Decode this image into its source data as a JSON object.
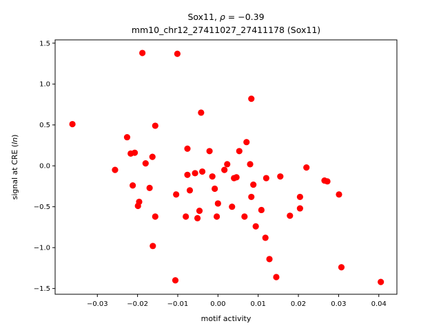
{
  "chart_data": {
    "type": "scatter",
    "title_line1": "Sox11, ρ = −0.39",
    "title_line2": "mm10_chr12_27411027_27411178 (Sox11)",
    "xlabel": "motif activity",
    "ylabel": "signal at CRE (ln)",
    "xlim": [
      -0.0405,
      0.0445
    ],
    "ylim": [
      -1.57,
      1.54
    ],
    "xticks": [
      -0.03,
      -0.02,
      -0.01,
      0.0,
      0.01,
      0.02,
      0.03,
      0.04
    ],
    "xtick_labels": [
      "−0.03",
      "−0.02",
      "−0.01",
      "0.00",
      "0.01",
      "0.02",
      "0.03",
      "0.04"
    ],
    "yticks": [
      -1.5,
      -1.0,
      -0.5,
      0.0,
      0.5,
      1.0,
      1.5
    ],
    "ytick_labels": [
      "−1.5",
      "−1.0",
      "−0.5",
      "0.0",
      "0.5",
      "1.0",
      "1.5"
    ],
    "grid": false,
    "marker_color": "#ff0000",
    "points": [
      {
        "x": -0.0362,
        "y": 0.51
      },
      {
        "x": -0.0256,
        "y": -0.05
      },
      {
        "x": -0.0226,
        "y": 0.35
      },
      {
        "x": -0.0217,
        "y": 0.15
      },
      {
        "x": -0.0212,
        "y": -0.24
      },
      {
        "x": -0.0207,
        "y": 0.16
      },
      {
        "x": -0.0199,
        "y": -0.49
      },
      {
        "x": -0.0196,
        "y": -0.44
      },
      {
        "x": -0.0188,
        "y": 1.38
      },
      {
        "x": -0.018,
        "y": 0.03
      },
      {
        "x": -0.017,
        "y": -0.27
      },
      {
        "x": -0.0163,
        "y": 0.11
      },
      {
        "x": -0.0162,
        "y": -0.98
      },
      {
        "x": -0.0156,
        "y": 0.49
      },
      {
        "x": -0.0156,
        "y": -0.62
      },
      {
        "x": -0.0106,
        "y": -1.4
      },
      {
        "x": -0.0104,
        "y": -0.35
      },
      {
        "x": -0.0101,
        "y": 1.37
      },
      {
        "x": -0.008,
        "y": -0.62
      },
      {
        "x": -0.0076,
        "y": 0.21
      },
      {
        "x": -0.0076,
        "y": -0.11
      },
      {
        "x": -0.007,
        "y": -0.3
      },
      {
        "x": -0.0057,
        "y": -0.09
      },
      {
        "x": -0.0051,
        "y": -0.64
      },
      {
        "x": -0.0046,
        "y": -0.55
      },
      {
        "x": -0.0042,
        "y": 0.65
      },
      {
        "x": -0.0039,
        "y": -0.07
      },
      {
        "x": -0.0021,
        "y": 0.18
      },
      {
        "x": -0.0014,
        "y": -0.13
      },
      {
        "x": -0.0008,
        "y": -0.28
      },
      {
        "x": -0.0003,
        "y": -0.62
      },
      {
        "x": 0.0,
        "y": -0.46
      },
      {
        "x": 0.0016,
        "y": -0.05
      },
      {
        "x": 0.0023,
        "y": 0.02
      },
      {
        "x": 0.0035,
        "y": -0.5
      },
      {
        "x": 0.004,
        "y": -0.15
      },
      {
        "x": 0.0046,
        "y": -0.14
      },
      {
        "x": 0.0053,
        "y": 0.18
      },
      {
        "x": 0.0066,
        "y": -0.62
      },
      {
        "x": 0.0071,
        "y": 0.29
      },
      {
        "x": 0.008,
        "y": 0.02
      },
      {
        "x": 0.0083,
        "y": 0.82
      },
      {
        "x": 0.0083,
        "y": -0.38
      },
      {
        "x": 0.0088,
        "y": -0.23
      },
      {
        "x": 0.0094,
        "y": -0.74
      },
      {
        "x": 0.0108,
        "y": -0.54
      },
      {
        "x": 0.0118,
        "y": -0.88
      },
      {
        "x": 0.012,
        "y": -0.15
      },
      {
        "x": 0.0128,
        "y": -1.14
      },
      {
        "x": 0.0145,
        "y": -1.36
      },
      {
        "x": 0.0155,
        "y": -0.13
      },
      {
        "x": 0.0179,
        "y": -0.61
      },
      {
        "x": 0.0204,
        "y": -0.38
      },
      {
        "x": 0.0204,
        "y": -0.52
      },
      {
        "x": 0.022,
        "y": -0.02
      },
      {
        "x": 0.0265,
        "y": -0.18
      },
      {
        "x": 0.0272,
        "y": -0.19
      },
      {
        "x": 0.0301,
        "y": -0.35
      },
      {
        "x": 0.0307,
        "y": -1.24
      },
      {
        "x": 0.0405,
        "y": -1.42
      }
    ]
  }
}
